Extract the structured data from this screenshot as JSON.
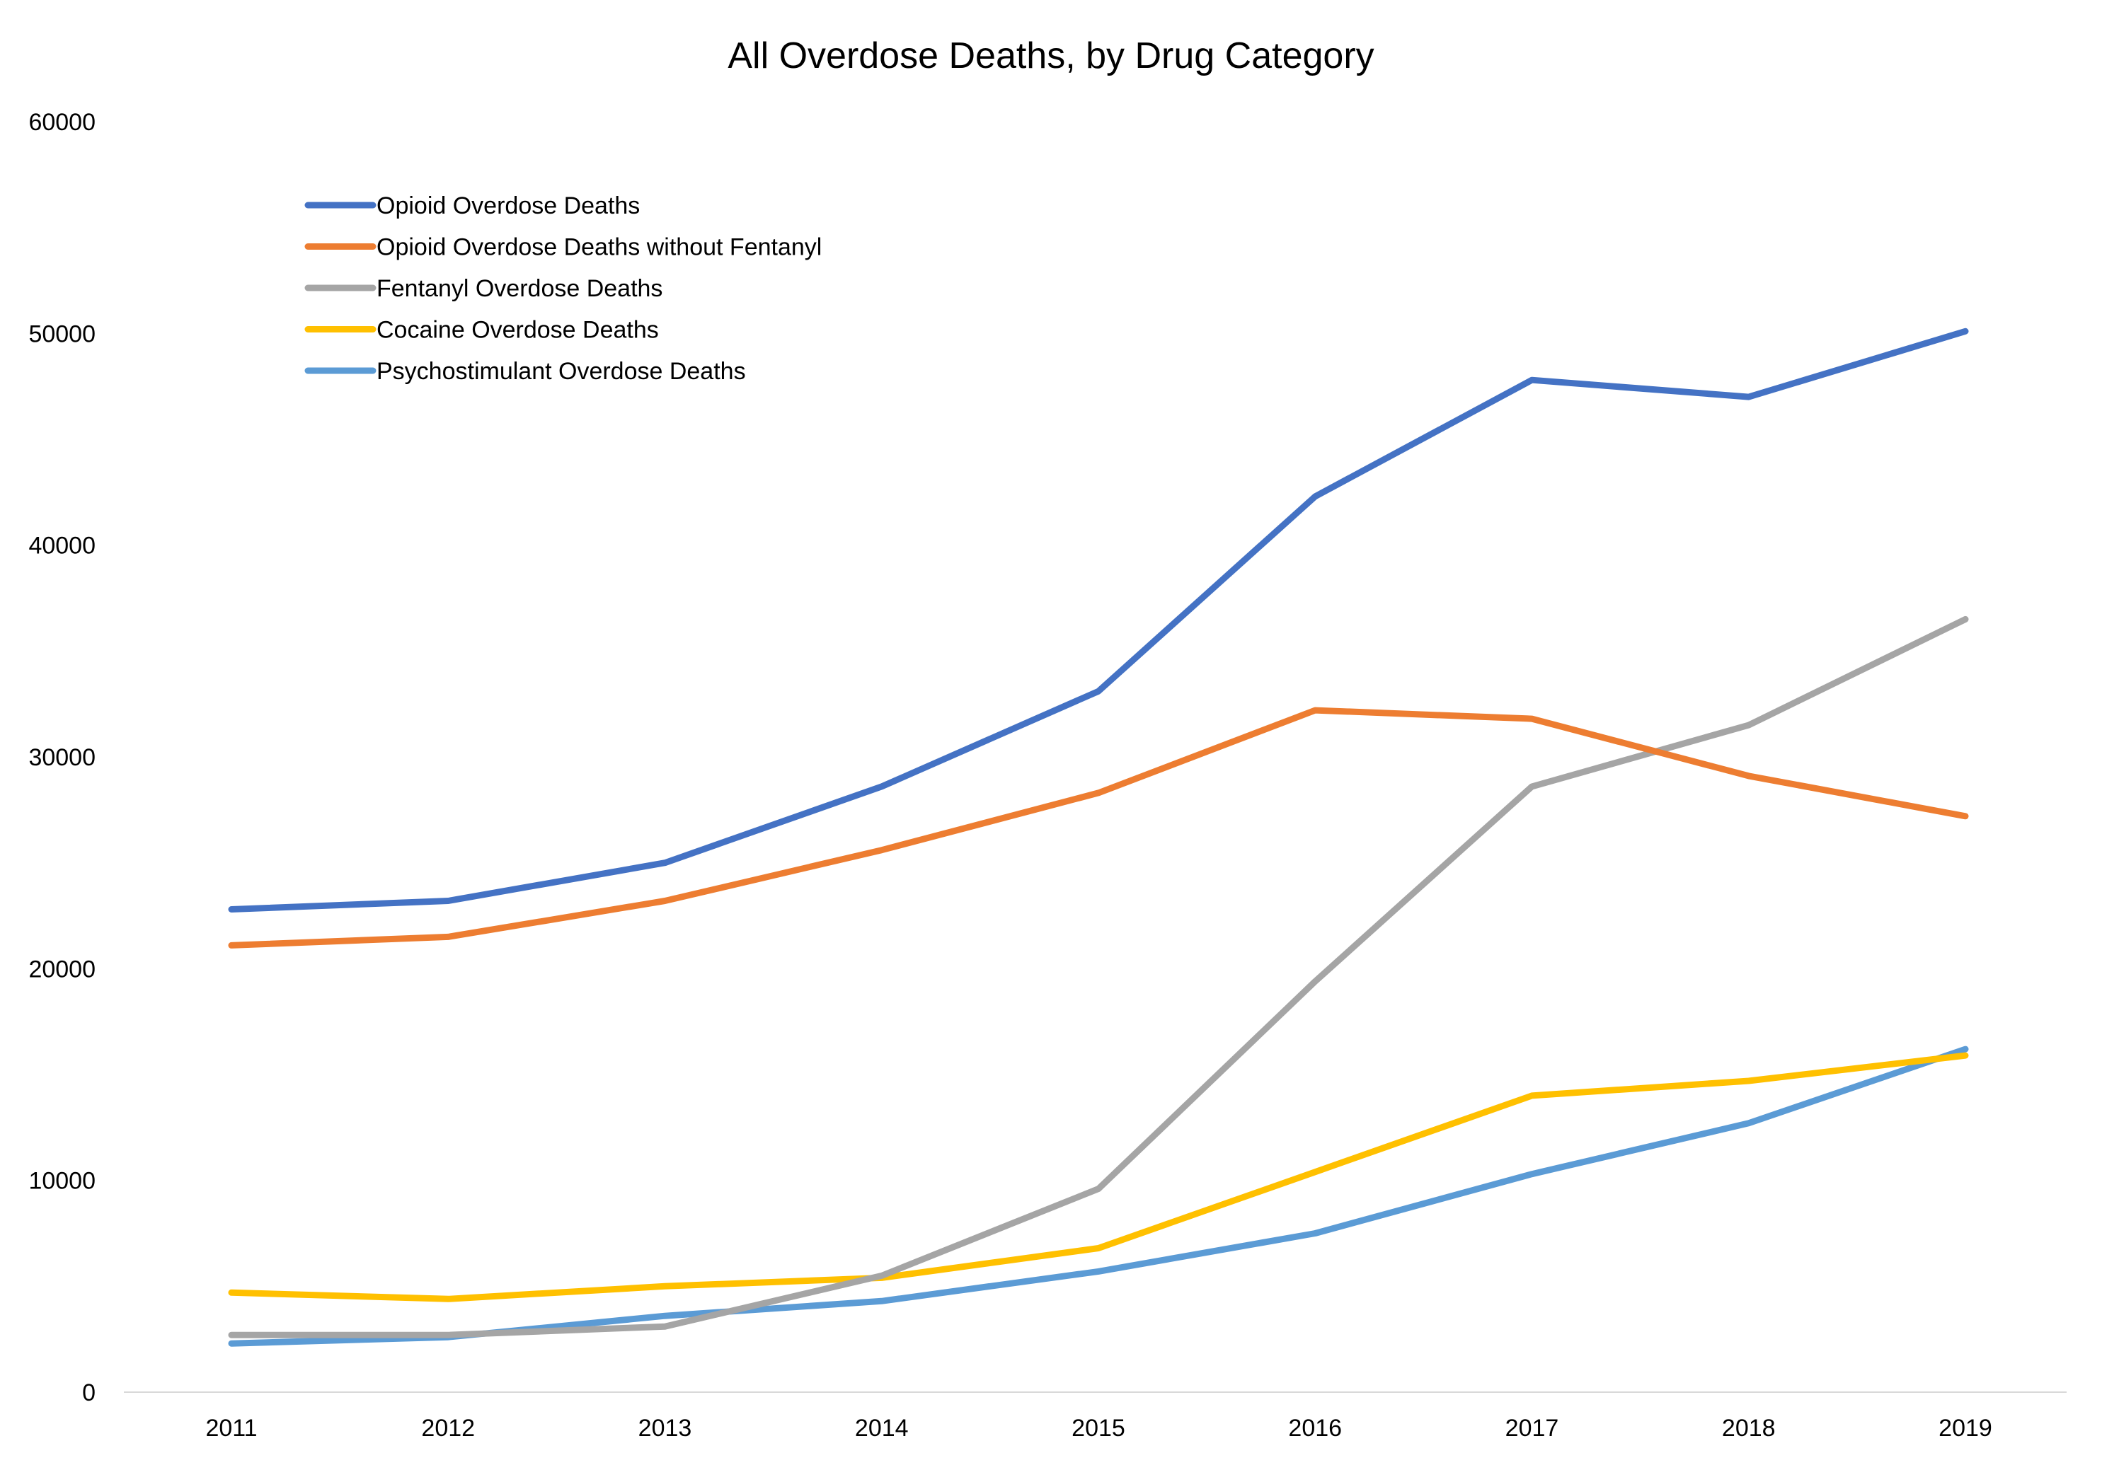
{
  "chart_data": {
    "type": "line",
    "title": "All Overdose Deaths, by Drug Category",
    "xlabel": "",
    "ylabel": "",
    "categories": [
      "2011",
      "2012",
      "2013",
      "2014",
      "2015",
      "2016",
      "2017",
      "2018",
      "2019"
    ],
    "ylim": [
      0,
      60000
    ],
    "yticks": [
      0,
      10000,
      20000,
      30000,
      40000,
      50000,
      60000
    ],
    "ytick_labels": [
      "0",
      "10000",
      "20000",
      "30000",
      "40000",
      "50000",
      "60000"
    ],
    "grid": false,
    "legend_position": "top-left",
    "series": [
      {
        "name": "Opioid Overdose Deaths",
        "color": "#4472C4",
        "values": [
          22800,
          23200,
          25000,
          28600,
          33100,
          42300,
          47800,
          47000,
          50100
        ]
      },
      {
        "name": "Opioid Overdose Deaths without Fentanyl",
        "color": "#ED7D31",
        "values": [
          21100,
          21500,
          23200,
          25600,
          28300,
          32200,
          31800,
          29100,
          27200
        ]
      },
      {
        "name": "Fentanyl Overdose Deaths",
        "color": "#A5A5A5",
        "values": [
          2700,
          2700,
          3100,
          5500,
          9600,
          19400,
          28600,
          31500,
          36500
        ]
      },
      {
        "name": "Cocaine Overdose Deaths",
        "color": "#FFC000",
        "values": [
          4700,
          4400,
          5000,
          5400,
          6800,
          10400,
          14000,
          14700,
          15900
        ]
      },
      {
        "name": "Psychostimulant Overdose Deaths",
        "color": "#5B9BD5",
        "values": [
          2300,
          2600,
          3600,
          4300,
          5700,
          7500,
          10300,
          12700,
          16200
        ]
      }
    ]
  }
}
